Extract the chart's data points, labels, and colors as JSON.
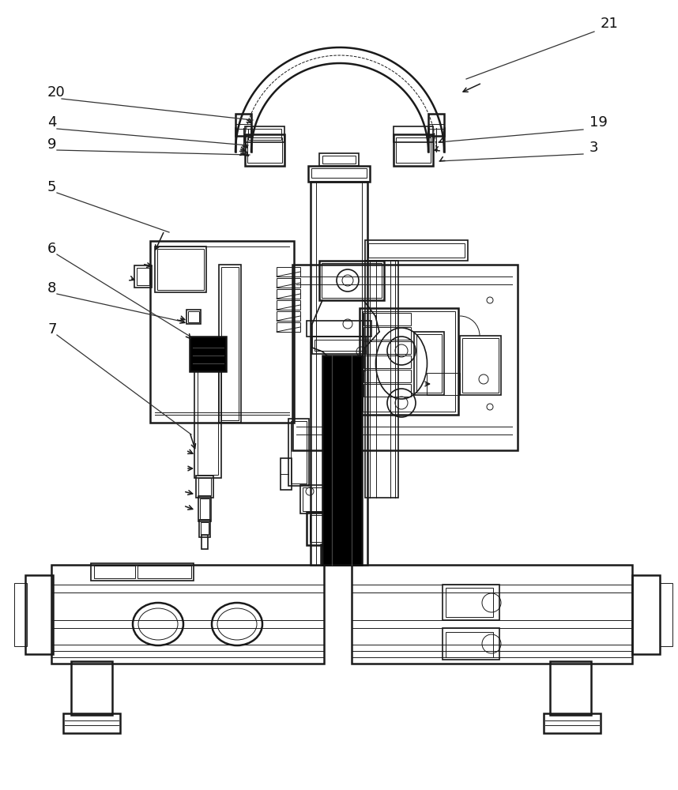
{
  "bg": "#ffffff",
  "lc": "#1a1a1a",
  "lw": 1.2,
  "lw2": 1.8,
  "lw3": 0.7,
  "fs": 13
}
